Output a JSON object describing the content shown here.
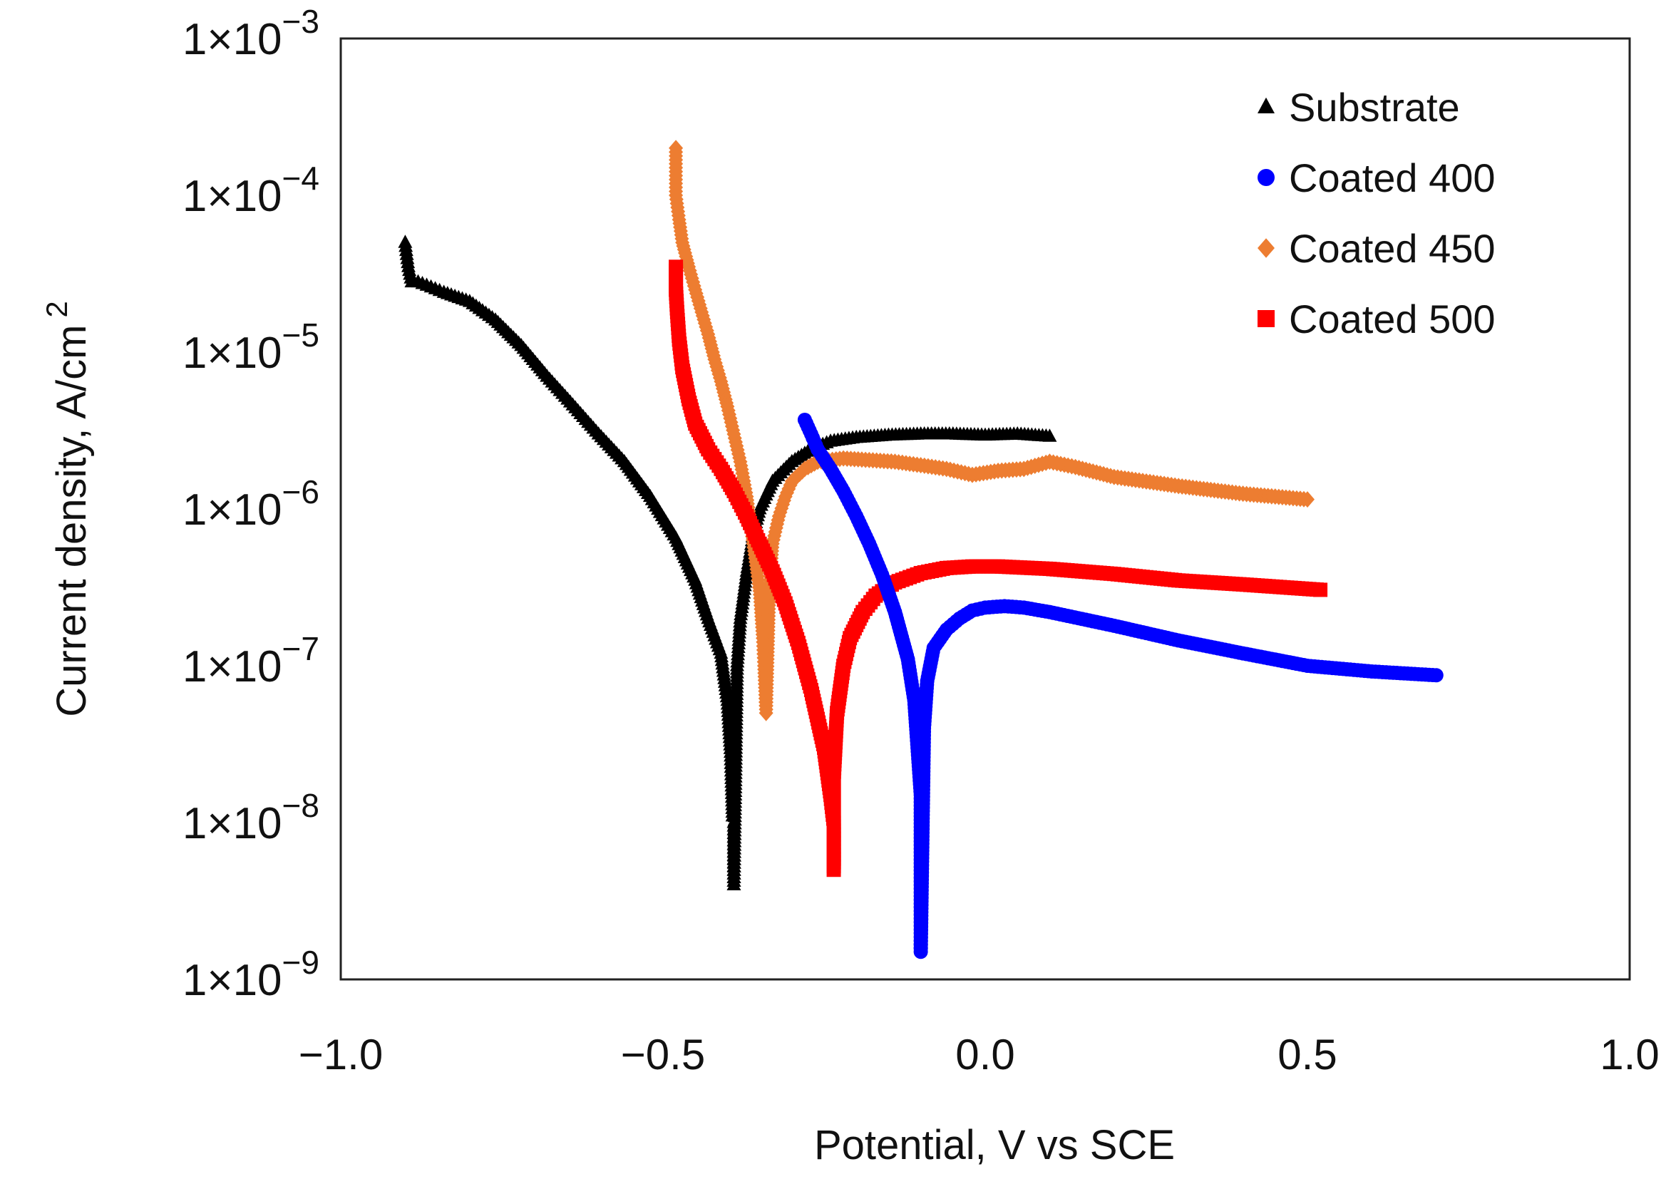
{
  "chart_data": {
    "type": "scatter",
    "xlabel": "Potential, V vs SCE",
    "ylabel": "Current density, A/cm",
    "ylabel_superscript": "2",
    "xlim": [
      -1.0,
      1.0
    ],
    "xticks": [
      -1.0,
      -0.5,
      0.0,
      0.5,
      1.0
    ],
    "xtick_labels": [
      "−1.0",
      "−0.5",
      "0.0",
      "0.5",
      "1.0"
    ],
    "y_scale": "log",
    "ylim": [
      1e-09,
      0.001
    ],
    "yticks": [
      {
        "base": "1×10",
        "exp": "−3"
      },
      {
        "base": "1×10",
        "exp": "−4"
      },
      {
        "base": "1×10",
        "exp": "−5"
      },
      {
        "base": "1×10",
        "exp": "−6"
      },
      {
        "base": "1×10",
        "exp": "−7"
      },
      {
        "base": "1×10",
        "exp": "−8"
      },
      {
        "base": "1×10",
        "exp": "−9"
      }
    ],
    "ytick_values": [
      0.001,
      0.0001,
      1e-05,
      1e-06,
      1e-07,
      1e-08,
      1e-09
    ],
    "grid": false,
    "legend_position": "top-right",
    "series": [
      {
        "name": "Substrate",
        "marker": "triangle",
        "color": "#000000",
        "x": [
          -0.9,
          -0.895,
          -0.89,
          -0.88,
          -0.86,
          -0.84,
          -0.8,
          -0.76,
          -0.72,
          -0.68,
          -0.64,
          -0.6,
          -0.56,
          -0.52,
          -0.48,
          -0.45,
          -0.43,
          -0.41,
          -0.4,
          -0.395,
          -0.392,
          -0.39,
          -0.39,
          -0.385,
          -0.38,
          -0.37,
          -0.36,
          -0.35,
          -0.33,
          -0.3,
          -0.27,
          -0.24,
          -0.2,
          -0.15,
          -0.1,
          -0.05,
          0.0,
          0.05,
          0.1
        ],
        "y": [
          5e-05,
          3.5e-05,
          2.8e-05,
          2.8e-05,
          2.6e-05,
          2.4e-05,
          2.1e-05,
          1.6e-05,
          1.1e-05,
          7e-06,
          4.6e-06,
          3e-06,
          2e-06,
          1.2e-06,
          6.5e-07,
          3.5e-07,
          2e-07,
          1.2e-07,
          6e-08,
          2.8e-08,
          1.1e-08,
          1e-08,
          4e-09,
          1e-07,
          2e-07,
          4e-07,
          7e-07,
          1e-06,
          1.5e-06,
          2e-06,
          2.4e-06,
          2.7e-06,
          2.85e-06,
          2.95e-06,
          3e-06,
          3e-06,
          2.95e-06,
          3e-06,
          2.9e-06
        ]
      },
      {
        "name": "Coated 400",
        "marker": "circle",
        "color": "#0000ff",
        "x": [
          -0.28,
          -0.27,
          -0.26,
          -0.24,
          -0.22,
          -0.2,
          -0.18,
          -0.16,
          -0.14,
          -0.12,
          -0.11,
          -0.105,
          -0.1,
          -0.1,
          -0.1,
          -0.1,
          -0.095,
          -0.09,
          -0.08,
          -0.06,
          -0.04,
          -0.02,
          0.0,
          0.03,
          0.06,
          0.1,
          0.2,
          0.3,
          0.4,
          0.5,
          0.6,
          0.7
        ],
        "y": [
          3.7e-06,
          3e-06,
          2.4e-06,
          1.8e-06,
          1.3e-06,
          9e-07,
          6e-07,
          3.8e-07,
          2.2e-07,
          1.1e-07,
          6e-08,
          3e-08,
          1.5e-08,
          8e-09,
          4e-09,
          1.5e-09,
          4e-08,
          8e-08,
          1.3e-07,
          1.7e-07,
          2e-07,
          2.25e-07,
          2.35e-07,
          2.4e-07,
          2.35e-07,
          2.2e-07,
          1.8e-07,
          1.45e-07,
          1.2e-07,
          1e-07,
          9.2e-08,
          8.7e-08
        ]
      },
      {
        "name": "Coated 450",
        "marker": "diamond",
        "color": "#ed7d31",
        "x": [
          -0.48,
          -0.48,
          -0.48,
          -0.475,
          -0.47,
          -0.46,
          -0.45,
          -0.44,
          -0.43,
          -0.42,
          -0.41,
          -0.4,
          -0.39,
          -0.38,
          -0.37,
          -0.36,
          -0.35,
          -0.345,
          -0.343,
          -0.34,
          -0.335,
          -0.33,
          -0.32,
          -0.31,
          -0.3,
          -0.28,
          -0.26,
          -0.22,
          -0.18,
          -0.14,
          -0.1,
          -0.06,
          -0.02,
          0.02,
          0.06,
          0.1,
          0.14,
          0.2,
          0.3,
          0.4,
          0.5
        ],
        "y": [
          0.0002,
          0.00015,
          0.0001,
          7e-05,
          5e-05,
          3.5e-05,
          2.5e-05,
          1.8e-05,
          1.3e-05,
          9e-06,
          6.5e-06,
          4.5e-06,
          3e-06,
          2e-06,
          1.2e-06,
          6e-07,
          3e-07,
          1.5e-07,
          1e-07,
          5e-08,
          3e-07,
          6e-07,
          9e-07,
          1.2e-06,
          1.5e-06,
          1.8e-06,
          2e-06,
          2.1e-06,
          2.05e-06,
          2e-06,
          1.9e-06,
          1.8e-06,
          1.65e-06,
          1.75e-06,
          1.8e-06,
          2e-06,
          1.85e-06,
          1.6e-06,
          1.4e-06,
          1.25e-06,
          1.15e-06
        ]
      },
      {
        "name": "Coated 500",
        "marker": "square",
        "color": "#ff0000",
        "x": [
          -0.48,
          -0.48,
          -0.478,
          -0.475,
          -0.47,
          -0.46,
          -0.45,
          -0.43,
          -0.41,
          -0.39,
          -0.37,
          -0.35,
          -0.33,
          -0.31,
          -0.29,
          -0.27,
          -0.25,
          -0.24,
          -0.235,
          -0.235,
          -0.235,
          -0.235,
          -0.23,
          -0.22,
          -0.21,
          -0.19,
          -0.17,
          -0.14,
          -0.1,
          -0.06,
          -0.02,
          0.02,
          0.1,
          0.2,
          0.3,
          0.4,
          0.52
        ],
        "y": [
          3.5e-05,
          2.5e-05,
          1.8e-05,
          1.2e-05,
          8e-06,
          5e-06,
          3.5e-06,
          2.4e-06,
          1.8e-06,
          1.3e-06,
          9e-07,
          6e-07,
          4e-07,
          2.5e-07,
          1.4e-07,
          7e-08,
          3e-08,
          1.5e-08,
          1e-08,
          7e-09,
          5e-09,
          2e-08,
          5e-08,
          1e-07,
          1.5e-07,
          2.2e-07,
          2.8e-07,
          3.4e-07,
          3.9e-07,
          4.2e-07,
          4.3e-07,
          4.3e-07,
          4.15e-07,
          3.85e-07,
          3.5e-07,
          3.3e-07,
          3.05e-07
        ]
      }
    ]
  }
}
